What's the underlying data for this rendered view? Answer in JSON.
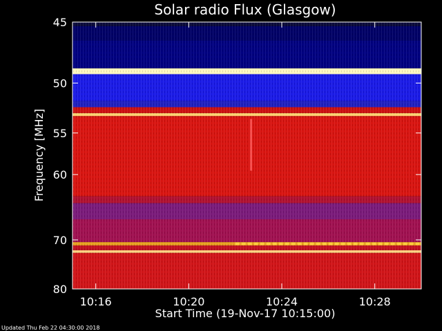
{
  "chart_data": {
    "type": "heatmap",
    "title": "Solar radio Flux (Glasgow)",
    "xlabel": "Start Time (19-Nov-17 10:15:00)",
    "ylabel": "Frequency [MHz]",
    "x_range": [
      "10:15:00",
      "10:30:00"
    ],
    "ylim": [
      45,
      80
    ],
    "y_scale": "reciprocal",
    "x_ticks": [
      "10:16",
      "10:20",
      "10:24",
      "10:28"
    ],
    "x_tick_minutes": [
      16,
      20,
      24,
      28
    ],
    "y_ticks": [
      45,
      50,
      55,
      60,
      70,
      80
    ],
    "footer": "Updated Thu Feb 22 04:30:00 2018",
    "bands": [
      {
        "f_top": 45.0,
        "f_bottom": 45.3,
        "color": "#0a0a3a"
      },
      {
        "f_top": 45.3,
        "f_bottom": 46.4,
        "color": "#000066"
      },
      {
        "f_top": 46.4,
        "f_bottom": 48.7,
        "color": "#000080"
      },
      {
        "f_top": 48.7,
        "f_bottom": 49.2,
        "color": "#fff8c0"
      },
      {
        "f_top": 49.2,
        "f_bottom": 51.7,
        "color": "#1a1ae6"
      },
      {
        "f_top": 51.7,
        "f_bottom": 52.3,
        "color": "#2020c0"
      },
      {
        "f_top": 52.3,
        "f_bottom": 52.9,
        "color": "#cc1010"
      },
      {
        "f_top": 52.9,
        "f_bottom": 53.2,
        "color": "#ffd070"
      },
      {
        "f_top": 53.2,
        "f_bottom": 63.0,
        "color": "#d81410"
      },
      {
        "f_top": 63.0,
        "f_bottom": 64.0,
        "color": "#b01030"
      },
      {
        "f_top": 64.0,
        "f_bottom": 66.5,
        "color": "#7a1a7a"
      },
      {
        "f_top": 66.5,
        "f_bottom": 70.4,
        "color": "#a01050"
      },
      {
        "f_top": 70.4,
        "f_bottom": 71.0,
        "color": "#e8a020"
      },
      {
        "f_top": 71.0,
        "f_bottom": 71.9,
        "color": "#c01020"
      },
      {
        "f_top": 71.9,
        "f_bottom": 72.4,
        "color": "#ffd080"
      },
      {
        "f_top": 72.4,
        "f_bottom": 80.0,
        "color": "#d01418"
      }
    ],
    "features": [
      {
        "type": "burst_line",
        "freq": 70.7,
        "t_start": "10:22:00",
        "t_end": "10:30:00",
        "color": "#ffcc40"
      },
      {
        "type": "spike",
        "freq_top": 53.5,
        "freq_bottom": 59.5,
        "t": "10:22:40",
        "color": "#ff6060"
      }
    ]
  }
}
